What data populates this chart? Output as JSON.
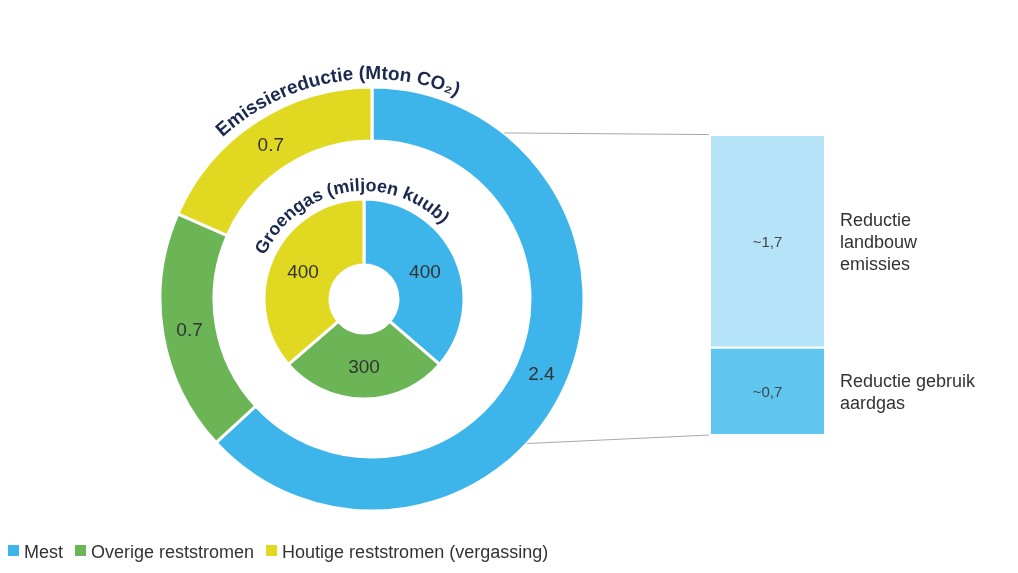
{
  "chart_data": [
    {
      "type": "donut",
      "title": "Emissiereductie (Mton CO₂)",
      "categories": [
        "Mest",
        "Overige reststromen",
        "Houtige reststromen (vergassing)"
      ],
      "values": [
        2.4,
        0.7,
        0.7
      ],
      "colors": [
        "#3db5ea",
        "#6cb557",
        "#e1d921"
      ],
      "data_labels": true,
      "legend": "bottom"
    },
    {
      "type": "donut",
      "title": "Groengas (miljoen kuub)",
      "categories": [
        null,
        null,
        null
      ],
      "values": [
        400,
        300,
        400
      ],
      "colors": [
        "#3db5ea",
        "#6cb557",
        "#e1d921"
      ],
      "data_labels": true
    },
    {
      "type": "bar",
      "stacked": true,
      "categories": [
        null
      ],
      "series": [
        {
          "name": "Reductie gebruik aardgas",
          "color": "#5fc6f0",
          "values": [
            0.7
          ],
          "value_labels": [
            "~0,7"
          ]
        },
        {
          "name": "Reductie landbouw emissies",
          "color": "#b5e3f8",
          "values": [
            1.7
          ],
          "value_labels": [
            "~1,7"
          ]
        }
      ]
    }
  ]
}
